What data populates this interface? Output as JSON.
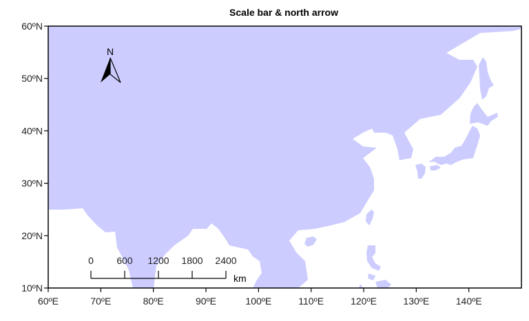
{
  "title": "Scale bar & north arrow",
  "map": {
    "land_color": "#ccccff",
    "frame_color": "#000000",
    "lon_range": [
      60,
      150
    ],
    "lat_range": [
      10,
      60
    ],
    "x_ticks": [
      {
        "value": 60,
        "label": "60ºE"
      },
      {
        "value": 70,
        "label": "70ºE"
      },
      {
        "value": 80,
        "label": "80ºE"
      },
      {
        "value": 90,
        "label": "90ºE"
      },
      {
        "value": 100,
        "label": "100ºE"
      },
      {
        "value": 110,
        "label": "110ºE"
      },
      {
        "value": 120,
        "label": "120ºE"
      },
      {
        "value": 130,
        "label": "130ºE"
      },
      {
        "value": 140,
        "label": "140ºE"
      }
    ],
    "y_ticks": [
      {
        "value": 60,
        "label": "60ºN"
      },
      {
        "value": 50,
        "label": "50ºN"
      },
      {
        "value": 40,
        "label": "40ºN"
      },
      {
        "value": 30,
        "label": "30ºN"
      },
      {
        "value": 20,
        "label": "20ºN"
      },
      {
        "value": 10,
        "label": "10ºN"
      }
    ]
  },
  "north_arrow": {
    "label": "N",
    "icon": "north-arrow-icon"
  },
  "scale_bar": {
    "labels": [
      "0",
      "600",
      "1200",
      "1800",
      "2400"
    ],
    "unit": "km"
  }
}
